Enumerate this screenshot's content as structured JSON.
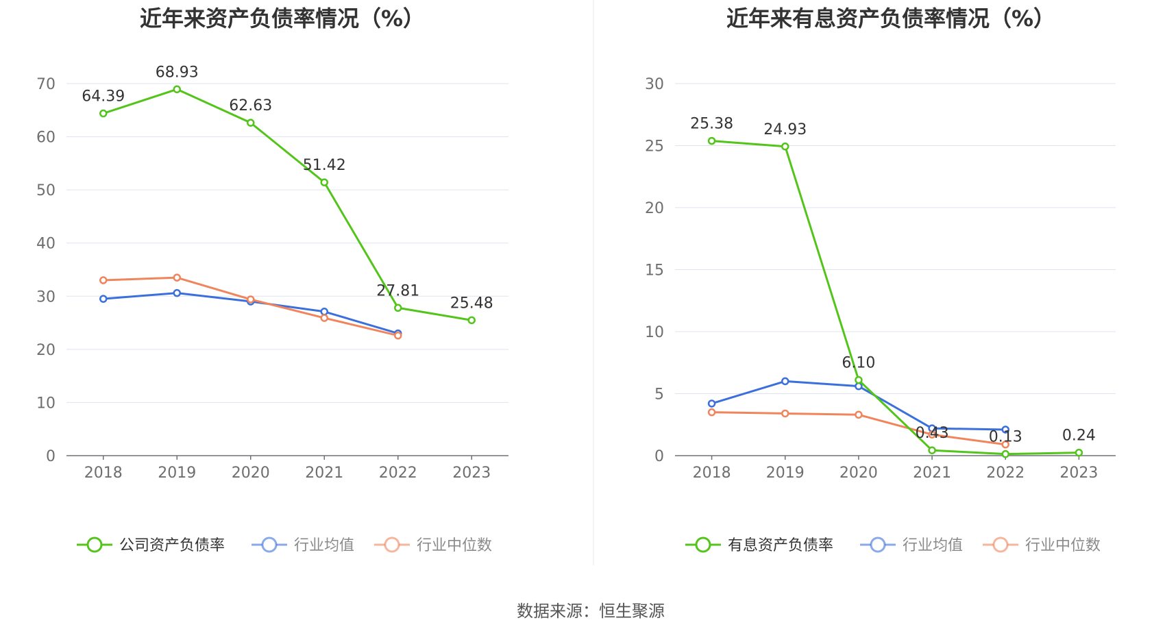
{
  "chart_data": [
    {
      "type": "line",
      "title": "近年来资产负债率情况（%）",
      "categories": [
        "2018",
        "2019",
        "2020",
        "2021",
        "2022",
        "2023"
      ],
      "ylim": [
        0,
        70
      ],
      "yticks": [
        "0",
        "10",
        "20",
        "30",
        "40",
        "50",
        "60",
        "70"
      ],
      "grid": true,
      "legend_position": "bottom",
      "series": [
        {
          "name": "公司资产负债率",
          "color": "#52c41a",
          "values": [
            64.39,
            68.93,
            62.63,
            51.42,
            27.81,
            25.48
          ],
          "labels": [
            "64.39",
            "68.93",
            "62.63",
            "51.42",
            "27.81",
            "25.48"
          ]
        },
        {
          "name": "行业均值",
          "color": "#3a6fdc",
          "values": [
            29.5,
            30.6,
            29.0,
            27.1,
            23.0,
            null
          ]
        },
        {
          "name": "行业中位数",
          "color": "#f0845c",
          "values": [
            33.0,
            33.5,
            29.4,
            25.9,
            22.6,
            null
          ]
        }
      ]
    },
    {
      "type": "line",
      "title": "近年来有息资产负债率情况（%）",
      "categories": [
        "2018",
        "2019",
        "2020",
        "2021",
        "2022",
        "2023"
      ],
      "ylim": [
        0,
        30
      ],
      "yticks": [
        "0",
        "5",
        "10",
        "15",
        "20",
        "25",
        "30"
      ],
      "grid": true,
      "legend_position": "bottom",
      "series": [
        {
          "name": "有息资产负债率",
          "color": "#52c41a",
          "values": [
            25.38,
            24.93,
            6.1,
            0.43,
            0.13,
            0.24
          ],
          "labels": [
            "25.38",
            "24.93",
            "6.10",
            "0.43",
            "0.13",
            "0.24"
          ]
        },
        {
          "name": "行业均值",
          "color": "#3a6fdc",
          "values": [
            4.2,
            6.0,
            5.6,
            2.2,
            2.1,
            null
          ]
        },
        {
          "name": "行业中位数",
          "color": "#f0845c",
          "values": [
            3.5,
            3.4,
            3.3,
            1.7,
            0.9,
            null
          ]
        }
      ]
    }
  ],
  "source_text": "数据来源：恒生聚源"
}
